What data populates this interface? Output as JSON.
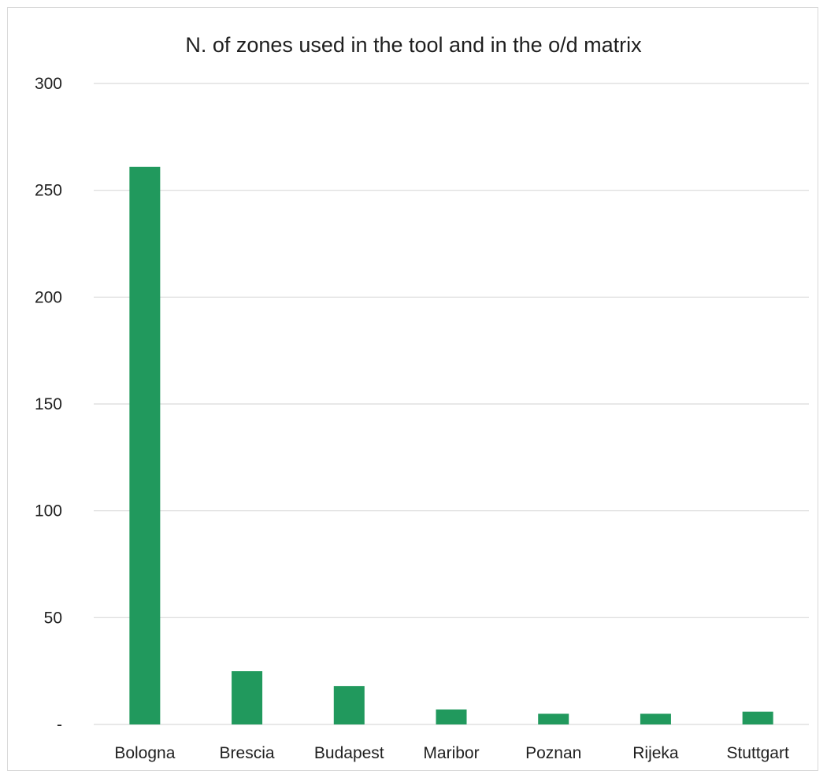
{
  "chart_data": {
    "type": "bar",
    "title": "N. of zones used in the tool and in the o/d matrix",
    "xlabel": "",
    "ylabel": "",
    "categories": [
      "Bologna",
      "Brescia",
      "Budapest",
      "Maribor",
      "Poznan",
      "Rijeka",
      "Stuttgart"
    ],
    "values": [
      261,
      25,
      18,
      7,
      5,
      5,
      6
    ],
    "ylim": [
      0,
      300
    ],
    "yticks": [
      0,
      50,
      100,
      150,
      200,
      250,
      300
    ],
    "ytick_labels": [
      "-",
      "50",
      "100",
      "150",
      "200",
      "250",
      "300"
    ],
    "grid": true,
    "legend": "none",
    "bar_color": "#21995d",
    "grid_color": "#d9d9d9"
  }
}
